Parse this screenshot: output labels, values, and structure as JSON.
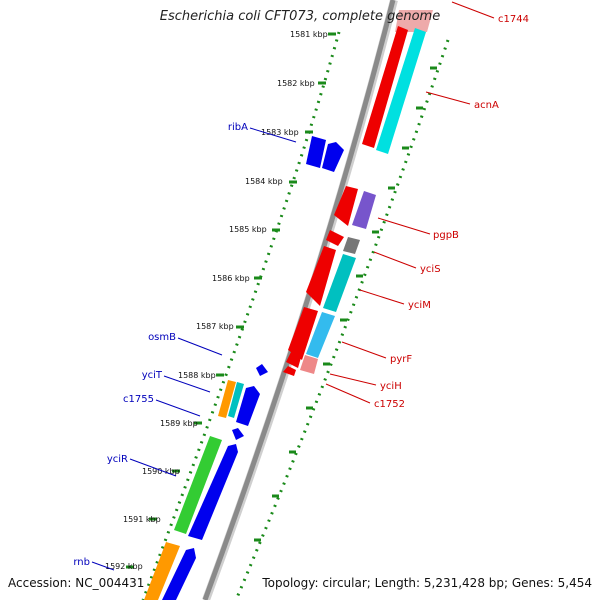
{
  "title": "Escherichia coli CFT073, complete genome",
  "footer": {
    "accession": "Accession: NC_004431",
    "summary": "Topology: circular; Length: 5,231,428 bp; Genes: 5,454"
  },
  "colors": {
    "backbone": "#888888",
    "tick": "#1a8a1a",
    "dot": "#1a8a1a",
    "label_forward": "#0000bb",
    "label_reverse": "#cc0000",
    "red": "#ee0000",
    "cyan": "#00e0e0",
    "teal": "#00c0c0",
    "skyblue": "#33bbee",
    "purple": "#7755cc",
    "gray": "#777777",
    "pink": "#ee8888",
    "blue": "#0000ee",
    "green": "#33cc33",
    "orange": "#ff9900"
  },
  "scale_labels": [
    "1581 kbp",
    "1582 kbp",
    "1583 kbp",
    "1584 kbp",
    "1585 kbp",
    "1586 kbp",
    "1587 kbp",
    "1588 kbp",
    "1589 kbp",
    "1590 kbp",
    "1591 kbp",
    "1592 kbp"
  ],
  "gene_labels_left": [
    "ribA",
    "osmB",
    "yciT",
    "c1755",
    "yciR",
    "rnb"
  ],
  "gene_labels_right": [
    "c1744",
    "acnA",
    "pgpB",
    "yciS",
    "yciM",
    "pyrF",
    "yciH",
    "c1752"
  ]
}
